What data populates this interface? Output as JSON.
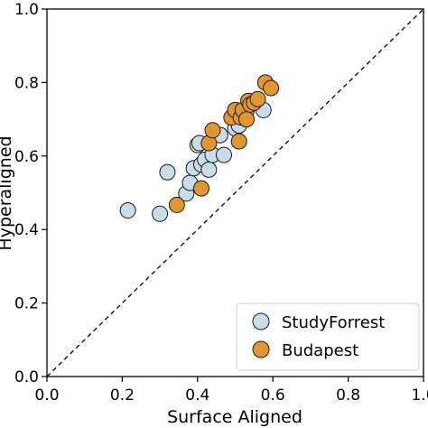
{
  "chart_data": {
    "type": "scatter",
    "xlabel": "Surface Aligned",
    "ylabel": "Hyperaligned",
    "xlim": [
      0,
      1
    ],
    "ylim": [
      0,
      1
    ],
    "x_ticks": [
      "0.0",
      "0.2",
      "0.4",
      "0.6",
      "0.8",
      "1.0"
    ],
    "y_ticks": [
      "0.0",
      "0.2",
      "0.4",
      "0.6",
      "0.8",
      "1.0"
    ],
    "grid": false,
    "legend_position": "bottom-right",
    "reference_line": "y = x (dashed)",
    "series": [
      {
        "name": "StudyForrest",
        "color": "#c7dde9",
        "points": [
          [
            0.215,
            0.452
          ],
          [
            0.3,
            0.443
          ],
          [
            0.32,
            0.556
          ],
          [
            0.37,
            0.498
          ],
          [
            0.38,
            0.527
          ],
          [
            0.39,
            0.567
          ],
          [
            0.4,
            0.63
          ],
          [
            0.405,
            0.635
          ],
          [
            0.41,
            0.577
          ],
          [
            0.42,
            0.59
          ],
          [
            0.43,
            0.563
          ],
          [
            0.44,
            0.603
          ],
          [
            0.46,
            0.657
          ],
          [
            0.47,
            0.603
          ],
          [
            0.5,
            0.675
          ],
          [
            0.51,
            0.683
          ],
          [
            0.53,
            0.723
          ],
          [
            0.575,
            0.725
          ]
        ]
      },
      {
        "name": "Budapest",
        "color": "#e3962e",
        "points": [
          [
            0.345,
            0.467
          ],
          [
            0.41,
            0.512
          ],
          [
            0.43,
            0.635
          ],
          [
            0.44,
            0.67
          ],
          [
            0.49,
            0.705
          ],
          [
            0.5,
            0.725
          ],
          [
            0.51,
            0.64
          ],
          [
            0.515,
            0.705
          ],
          [
            0.52,
            0.725
          ],
          [
            0.53,
            0.7
          ],
          [
            0.535,
            0.75
          ],
          [
            0.54,
            0.74
          ],
          [
            0.55,
            0.745
          ],
          [
            0.56,
            0.755
          ],
          [
            0.58,
            0.8
          ],
          [
            0.595,
            0.785
          ]
        ]
      }
    ]
  }
}
